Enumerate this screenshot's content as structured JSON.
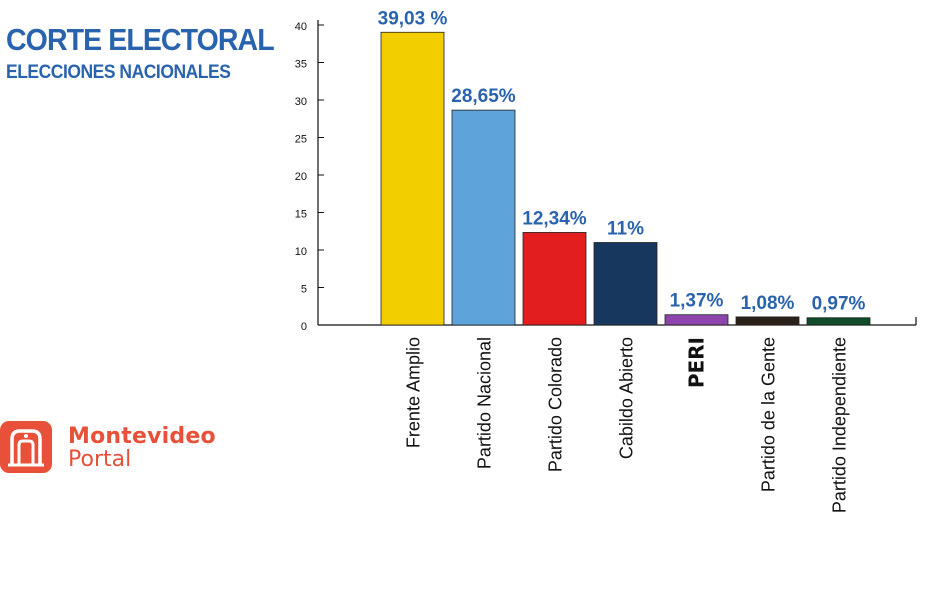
{
  "header": {
    "title": "CORTE ELECTORAL",
    "subtitle": "ELECCIONES NACIONALES"
  },
  "logo": {
    "line1": "Montevideo",
    "line2": "Portal",
    "color": "#e8503a"
  },
  "chart_data": {
    "type": "bar",
    "title": "",
    "xlabel": "",
    "ylabel": "",
    "ylim": [
      0,
      40
    ],
    "yticks": [
      0,
      5,
      10,
      15,
      20,
      25,
      30,
      35,
      40
    ],
    "grid": false,
    "categories": [
      "Frente Amplio",
      "Partido Nacional",
      "Partido Colorado",
      "Cabildo Abierto",
      "PERI",
      "Partido de la Gente",
      "Partido Independiente"
    ],
    "values": [
      39.03,
      28.65,
      12.34,
      11,
      1.37,
      1.08,
      0.97
    ],
    "value_labels": [
      "39,03 %",
      "28,65%",
      "12,34%",
      "11%",
      "1,37%",
      "1,08%",
      "0,97%"
    ],
    "colors": [
      "#f2cd00",
      "#5fa3db",
      "#e31e1e",
      "#17375e",
      "#8e44ad",
      "#2b2118",
      "#0f4d2a"
    ],
    "label_color": "#2a63ad"
  }
}
